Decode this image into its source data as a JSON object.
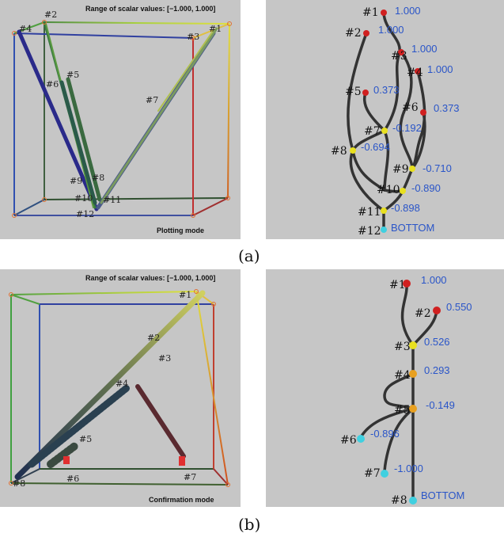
{
  "figure": {
    "caption_a": "(a)",
    "caption_b": "(b)"
  },
  "panel_a_plot": {
    "range_text": "Range of scalar values: [−1.000,  1.000]",
    "mode_text": "Plotting mode",
    "point_labels": [
      "#1",
      "#2",
      "#3",
      "#4",
      "#5",
      "#6",
      "#7",
      "#8",
      "#9",
      "#10",
      "#11",
      "#12"
    ]
  },
  "panel_a_tree": {
    "nodes": [
      {
        "label": "#1",
        "value": "1.000",
        "color": "red"
      },
      {
        "label": "#2",
        "value": "1.000",
        "color": "red"
      },
      {
        "label": "#3",
        "value": "1.000",
        "color": "red"
      },
      {
        "label": "#4",
        "value": "1.000",
        "color": "red"
      },
      {
        "label": "#5",
        "value": "0.373",
        "color": "red"
      },
      {
        "label": "#6",
        "value": "0.373",
        "color": "red"
      },
      {
        "label": "#7",
        "value": "-0.192",
        "color": "yellow"
      },
      {
        "label": "#8",
        "value": "-0.694",
        "color": "yellow"
      },
      {
        "label": "#9",
        "value": "-0.710",
        "color": "yellow"
      },
      {
        "label": "#10",
        "value": "-0.890",
        "color": "yellow"
      },
      {
        "label": "#11",
        "value": "-0.898",
        "color": "yellow"
      },
      {
        "label": "#12",
        "value": "BOTTOM",
        "color": "cyan"
      }
    ]
  },
  "panel_b_plot": {
    "range_text": "Range of scalar values: [−1.000,  1.000]",
    "mode_text": "Confirmation mode",
    "point_labels": [
      "#1",
      "#2",
      "#3",
      "#4",
      "#5",
      "#6",
      "#7",
      "#8"
    ]
  },
  "panel_b_tree": {
    "nodes": [
      {
        "label": "#1",
        "value": "1.000",
        "color": "red"
      },
      {
        "label": "#2",
        "value": "0.550",
        "color": "red"
      },
      {
        "label": "#3",
        "value": "0.526",
        "color": "yellow"
      },
      {
        "label": "#4",
        "value": "0.293",
        "color": "orange"
      },
      {
        "label": "#5",
        "value": "-0.149",
        "color": "orange"
      },
      {
        "label": "#6",
        "value": "-0.896",
        "color": "cyan"
      },
      {
        "label": "#7",
        "value": "-1.000",
        "color": "cyan"
      },
      {
        "label": "#8",
        "value": "BOTTOM",
        "color": "cyan"
      }
    ]
  },
  "colors": {
    "panel_bg": "#c6c6c6",
    "value_text": "#2a55c8",
    "red_node": "#d02020",
    "yellow_node": "#e8e020",
    "orange_node": "#e8a020",
    "cyan_node": "#40d0e0",
    "edge": "#333333"
  }
}
